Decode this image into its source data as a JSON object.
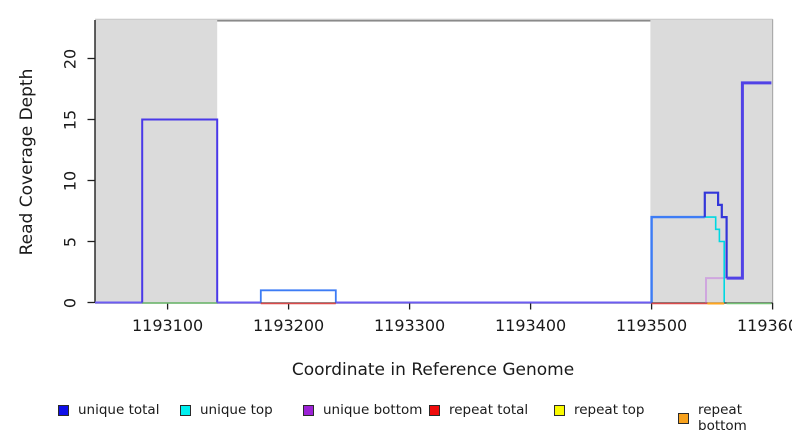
{
  "y_axis": {
    "label": "Read Coverage Depth",
    "ticks": [
      "0",
      "5",
      "10",
      "15",
      "20"
    ]
  },
  "x_axis": {
    "label": "Coordinate in Reference Genome",
    "ticks": [
      "1193100",
      "1193200",
      "1193300",
      "1193400",
      "1193500",
      "1193600"
    ]
  },
  "legend": {
    "items": [
      {
        "label": "unique total",
        "color": "#0F0FE8"
      },
      {
        "label": "unique top",
        "color": "#00EFEF"
      },
      {
        "label": "unique bottom",
        "color": "#9C22D6"
      },
      {
        "label": "repeat total",
        "color": "#F00C0C"
      },
      {
        "label": "repeat top",
        "color": "#FAFA00"
      },
      {
        "label": "repeat bottom",
        "color": "#F7A11C"
      }
    ]
  },
  "chart_data": {
    "type": "line",
    "title": "",
    "xlabel": "Coordinate in Reference Genome",
    "ylabel": "Read Coverage Depth",
    "xlim": [
      1193040,
      1193600
    ],
    "ylim": [
      0,
      23.1
    ],
    "grid": false,
    "x_tick_values": [
      1193100,
      1193200,
      1193300,
      1193400,
      1193500,
      1193600
    ],
    "y_tick_values": [
      0,
      5,
      10,
      15,
      20
    ],
    "shade_color": "#DBDBDB",
    "shaded_regions": [
      {
        "x0": 1193040,
        "x1": 1193141
      },
      {
        "x0": 1193499,
        "x1": 1193600
      }
    ],
    "x_end": 1193599,
    "series": [
      {
        "name": "unique total",
        "color": "#0F0FE8",
        "steps": [
          [
            1193040,
            0
          ],
          [
            1193079,
            15
          ],
          [
            1193141,
            0
          ],
          [
            1193177,
            1
          ],
          [
            1193239,
            0
          ],
          [
            1193500,
            7
          ],
          [
            1193544,
            9
          ],
          [
            1193555,
            8
          ],
          [
            1193558,
            7
          ],
          [
            1193562,
            2
          ],
          [
            1193575,
            18
          ]
        ]
      },
      {
        "name": "unique top",
        "color": "#00EFEF",
        "steps": [
          [
            1193040,
            0
          ],
          [
            1193500,
            7
          ],
          [
            1193553,
            6
          ],
          [
            1193556,
            5
          ],
          [
            1193560,
            0
          ]
        ]
      },
      {
        "name": "unique bottom",
        "color": "#9C22D6",
        "steps": [
          [
            1193040,
            0
          ],
          [
            1193079,
            15
          ],
          [
            1193141,
            0
          ],
          [
            1193545,
            2
          ],
          [
            1193575,
            18
          ]
        ]
      },
      {
        "name": "repeat total",
        "color": "#F00C0C",
        "steps": [
          [
            1193040,
            0
          ]
        ]
      },
      {
        "name": "repeat top",
        "color": "#FAFA00",
        "steps": [
          [
            1193040,
            0
          ]
        ]
      },
      {
        "name": "repeat bottom",
        "color": "#F7A11C",
        "steps": [
          [
            1193040,
            0
          ]
        ]
      }
    ],
    "render_paths": [
      {
        "color": "#6C5CF2",
        "w": 2,
        "dy": 0,
        "pts": [
          [
            1193040,
            0
          ],
          [
            1193079,
            0
          ]
        ]
      },
      {
        "color": "#74C274",
        "w": 1.6,
        "dy": 0.5,
        "pts": [
          [
            1193079,
            0
          ],
          [
            1193141,
            0
          ]
        ]
      },
      {
        "color": "#4A38E8",
        "w": 2,
        "dy": 0,
        "pts": [
          [
            1193079,
            0
          ],
          [
            1193079,
            15
          ],
          [
            1193141,
            15
          ],
          [
            1193141,
            0
          ]
        ]
      },
      {
        "color": "#6C5CF2",
        "w": 2,
        "dy": 0,
        "pts": [
          [
            1193141,
            0
          ],
          [
            1193177,
            0
          ]
        ]
      },
      {
        "color": "#DB4A4A",
        "w": 1.6,
        "dy": 1,
        "pts": [
          [
            1193177,
            0
          ],
          [
            1193239,
            0
          ]
        ]
      },
      {
        "color": "#3D7CF5",
        "w": 1.8,
        "dy": 0,
        "pts": [
          [
            1193177,
            0
          ],
          [
            1193177,
            1
          ],
          [
            1193239,
            1
          ],
          [
            1193239,
            0
          ]
        ]
      },
      {
        "color": "#6C5CF2",
        "w": 2,
        "dy": 0,
        "pts": [
          [
            1193239,
            0
          ],
          [
            1193500,
            0
          ]
        ]
      },
      {
        "color": "#DB4A4A",
        "w": 1.6,
        "dy": 1,
        "pts": [
          [
            1193500,
            0
          ],
          [
            1193546,
            0
          ]
        ]
      },
      {
        "color": "#FFA51E",
        "w": 2,
        "dy": 1,
        "pts": [
          [
            1193546,
            0
          ],
          [
            1193560,
            0
          ]
        ]
      },
      {
        "color": "#74C274",
        "w": 1.6,
        "dy": 1,
        "pts": [
          [
            1193562,
            0
          ],
          [
            1193599,
            0
          ]
        ]
      },
      {
        "color": "#CFA6DE",
        "w": 2,
        "dy": 0,
        "pts": [
          [
            1193545,
            0
          ],
          [
            1193545,
            2
          ],
          [
            1193562,
            2
          ]
        ]
      },
      {
        "color": "#00D8E2",
        "w": 1.6,
        "dy": 0,
        "pts": [
          [
            1193544,
            7
          ],
          [
            1193553,
            7
          ],
          [
            1193553,
            6
          ],
          [
            1193556,
            6
          ],
          [
            1193556,
            5
          ],
          [
            1193560,
            5
          ],
          [
            1193560,
            0
          ]
        ]
      },
      {
        "color": "#3D7CF5",
        "w": 2.4,
        "dy": 0,
        "pts": [
          [
            1193500,
            0
          ],
          [
            1193500,
            7
          ],
          [
            1193544,
            7
          ]
        ]
      },
      {
        "color": "#3336D9",
        "w": 2.2,
        "dy": 0,
        "pts": [
          [
            1193544,
            7
          ],
          [
            1193544,
            9
          ],
          [
            1193555,
            9
          ],
          [
            1193555,
            8
          ],
          [
            1193558,
            8
          ],
          [
            1193558,
            7
          ],
          [
            1193562,
            7
          ],
          [
            1193562,
            2
          ]
        ]
      },
      {
        "color": "#5142E6",
        "w": 3,
        "dy": 0,
        "pts": [
          [
            1193562,
            2
          ],
          [
            1193575,
            2
          ],
          [
            1193575,
            18
          ],
          [
            1193599,
            18
          ]
        ]
      }
    ]
  }
}
